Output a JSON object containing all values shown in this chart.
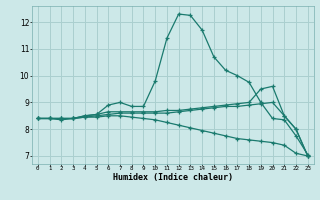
{
  "title": "",
  "xlabel": "Humidex (Indice chaleur)",
  "background_color": "#cce8e8",
  "grid_color": "#aacfcf",
  "line_color": "#1a7a6e",
  "xlim": [
    -0.5,
    23.5
  ],
  "ylim": [
    6.7,
    12.6
  ],
  "yticks": [
    7,
    8,
    9,
    10,
    11,
    12
  ],
  "xticks": [
    0,
    1,
    2,
    3,
    4,
    5,
    6,
    7,
    8,
    9,
    10,
    11,
    12,
    13,
    14,
    15,
    16,
    17,
    18,
    19,
    20,
    21,
    22,
    23
  ],
  "lines": [
    {
      "x": [
        0,
        1,
        2,
        3,
        4,
        5,
        6,
        7,
        8,
        9,
        10,
        11,
        12,
        13,
        14,
        15,
        16,
        17,
        18,
        19,
        20,
        21,
        22,
        23
      ],
      "y": [
        8.4,
        8.4,
        8.35,
        8.4,
        8.5,
        8.55,
        8.9,
        9.0,
        8.85,
        8.85,
        9.8,
        11.4,
        12.3,
        12.25,
        11.7,
        10.7,
        10.2,
        10.0,
        9.75,
        9.0,
        8.4,
        8.35,
        7.75,
        7.05
      ]
    },
    {
      "x": [
        0,
        1,
        2,
        3,
        4,
        5,
        6,
        7,
        8,
        9,
        10,
        11,
        12,
        13,
        14,
        15,
        16,
        17,
        18,
        19,
        20,
        21,
        22,
        23
      ],
      "y": [
        8.4,
        8.4,
        8.4,
        8.4,
        8.5,
        8.55,
        8.65,
        8.65,
        8.65,
        8.65,
        8.65,
        8.7,
        8.7,
        8.75,
        8.8,
        8.85,
        8.9,
        8.95,
        9.0,
        9.5,
        9.6,
        8.5,
        8.0,
        7.0
      ]
    },
    {
      "x": [
        0,
        1,
        2,
        3,
        4,
        5,
        6,
        7,
        8,
        9,
        10,
        11,
        12,
        13,
        14,
        15,
        16,
        17,
        18,
        19,
        20,
        21,
        22,
        23
      ],
      "y": [
        8.4,
        8.4,
        8.4,
        8.4,
        8.45,
        8.5,
        8.55,
        8.6,
        8.6,
        8.6,
        8.6,
        8.6,
        8.65,
        8.7,
        8.75,
        8.8,
        8.85,
        8.85,
        8.9,
        8.95,
        9.0,
        8.5,
        8.0,
        7.0
      ]
    },
    {
      "x": [
        0,
        1,
        2,
        3,
        4,
        5,
        6,
        7,
        8,
        9,
        10,
        11,
        12,
        13,
        14,
        15,
        16,
        17,
        18,
        19,
        20,
        21,
        22,
        23
      ],
      "y": [
        8.4,
        8.4,
        8.4,
        8.4,
        8.45,
        8.45,
        8.5,
        8.5,
        8.45,
        8.4,
        8.35,
        8.25,
        8.15,
        8.05,
        7.95,
        7.85,
        7.75,
        7.65,
        7.6,
        7.55,
        7.5,
        7.4,
        7.1,
        7.0
      ]
    }
  ]
}
